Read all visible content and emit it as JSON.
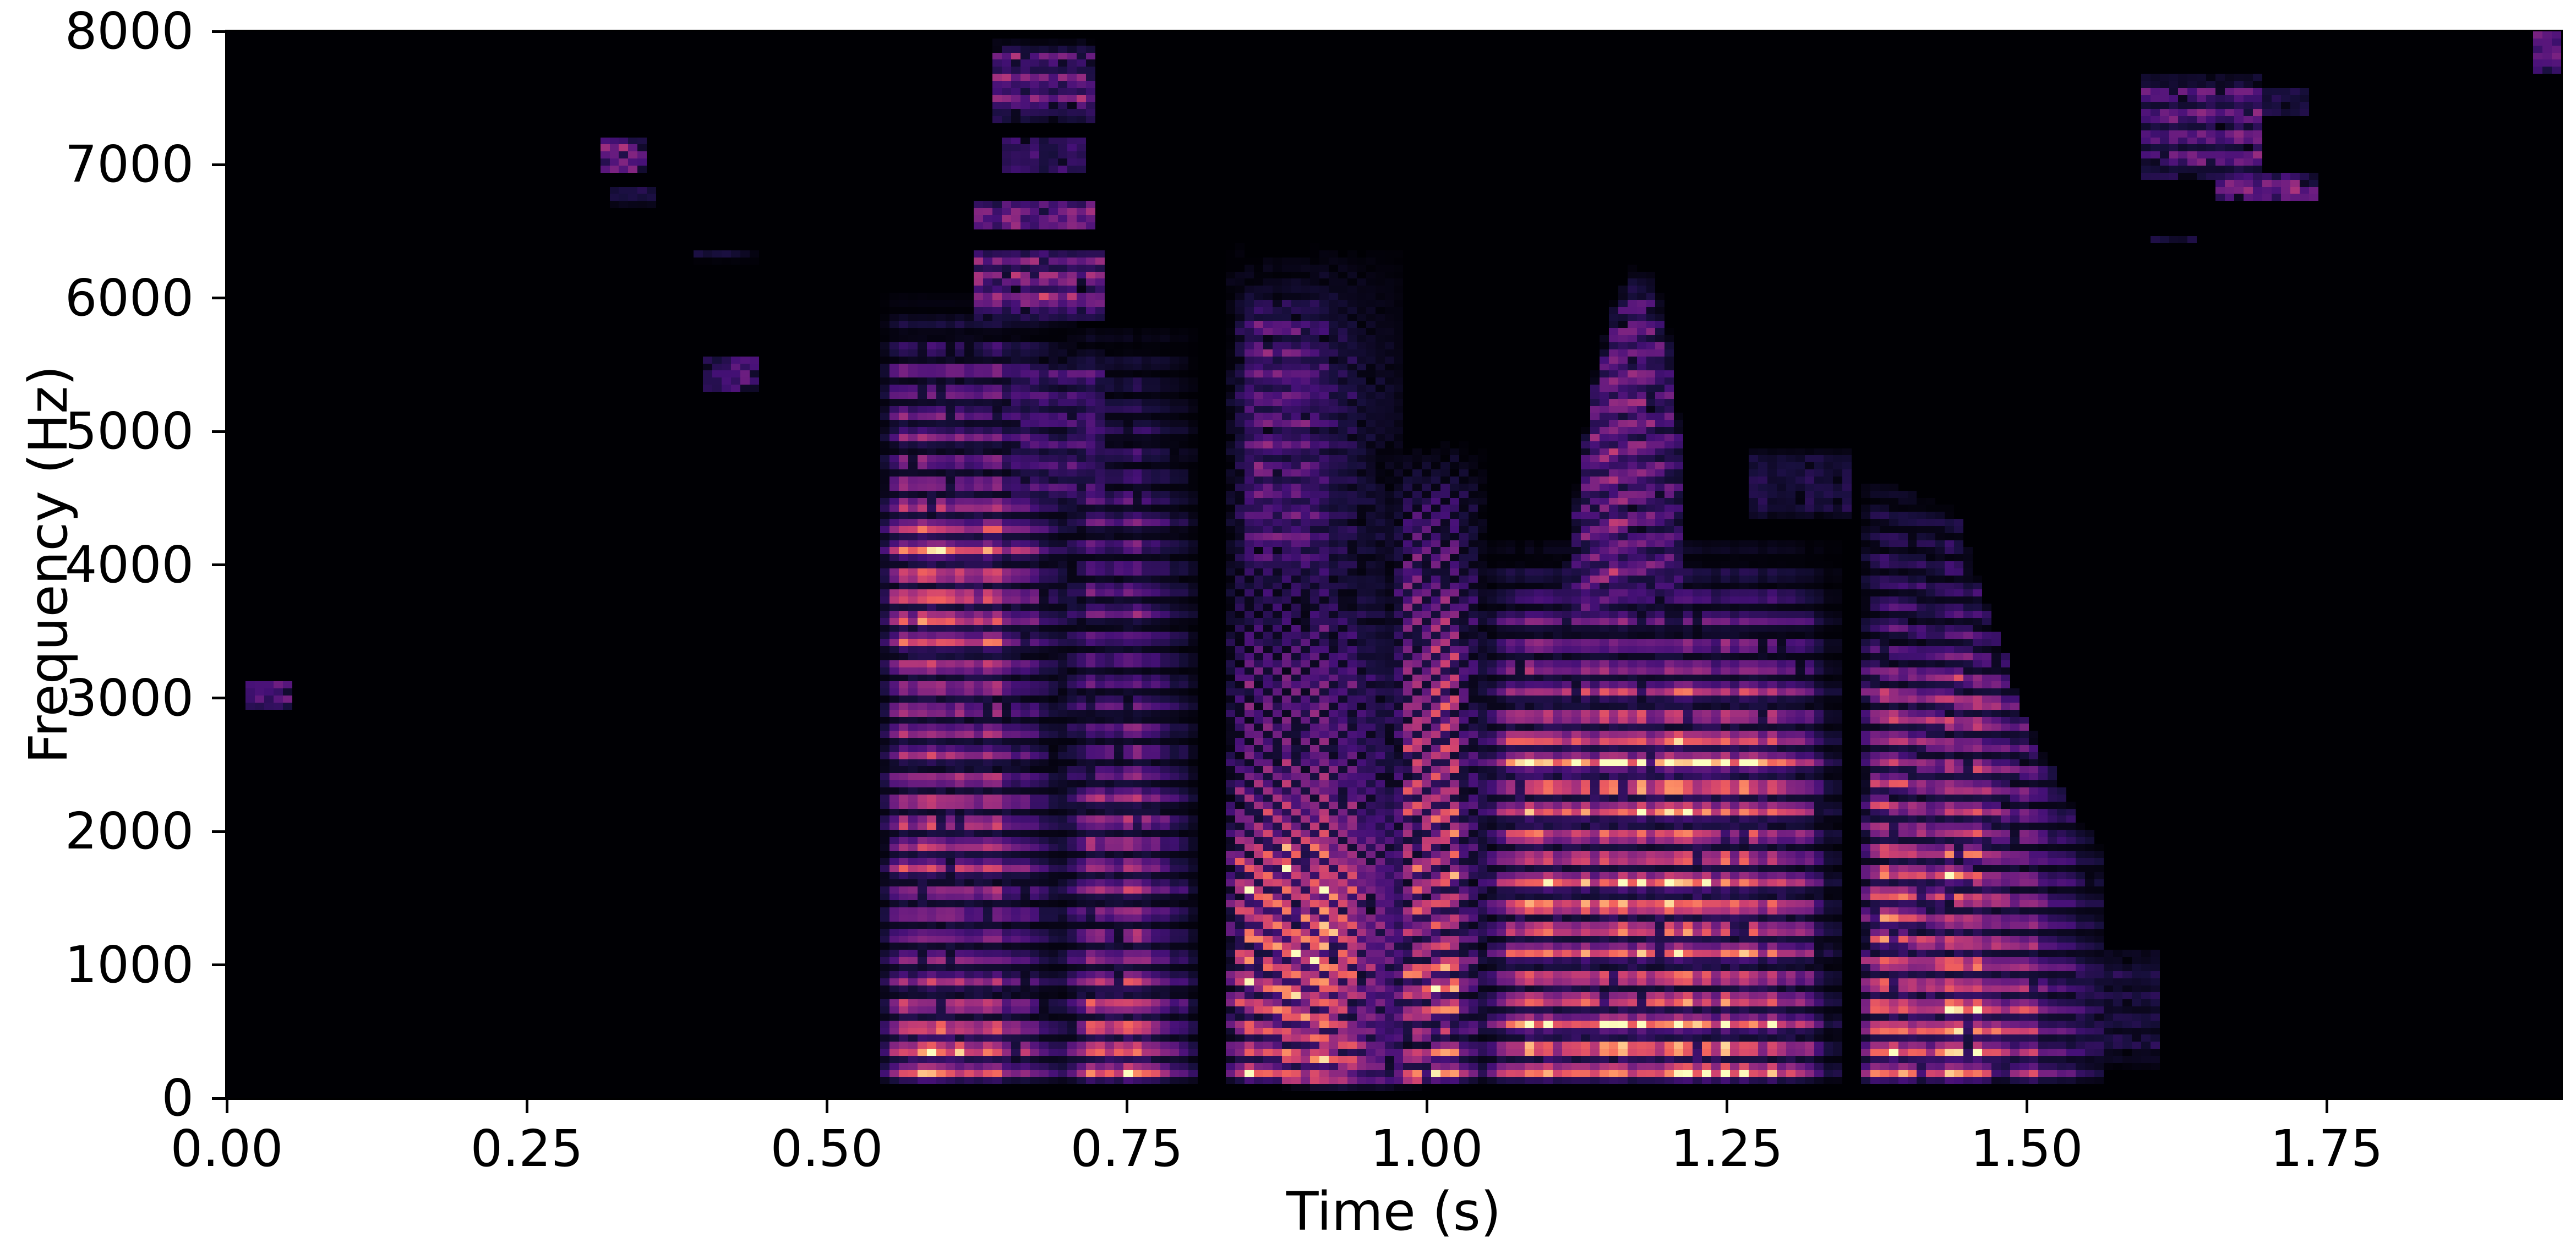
{
  "chart_data": {
    "type": "heatmap",
    "variant": "spectrogram",
    "title": "",
    "xlabel": "Time (s)",
    "ylabel": "Frequency (Hz)",
    "xlim": [
      0,
      1.9454
    ],
    "ylim": [
      0,
      8000
    ],
    "grid_on": false,
    "xticks": [
      {
        "value": 0.0,
        "label": "0.00"
      },
      {
        "value": 0.25,
        "label": "0.25"
      },
      {
        "value": 0.5,
        "label": "0.50"
      },
      {
        "value": 0.75,
        "label": "0.75"
      },
      {
        "value": 1.0,
        "label": "1.00"
      },
      {
        "value": 1.25,
        "label": "1.25"
      },
      {
        "value": 1.5,
        "label": "1.50"
      },
      {
        "value": 1.75,
        "label": "1.75"
      }
    ],
    "yticks": [
      {
        "value": 0,
        "label": "0"
      },
      {
        "value": 1000,
        "label": "1000"
      },
      {
        "value": 2000,
        "label": "2000"
      },
      {
        "value": 3000,
        "label": "3000"
      },
      {
        "value": 4000,
        "label": "4000"
      },
      {
        "value": 5000,
        "label": "5000"
      },
      {
        "value": 6000,
        "label": "6000"
      },
      {
        "value": 7000,
        "label": "7000"
      },
      {
        "value": 8000,
        "label": "8000"
      }
    ],
    "colormap": {
      "name": "magma",
      "background": "#000004",
      "stops": [
        [
          0.0,
          "#000004"
        ],
        [
          0.125,
          "#180f3e"
        ],
        [
          0.25,
          "#451077"
        ],
        [
          0.375,
          "#721f81"
        ],
        [
          0.5,
          "#9f2f7f"
        ],
        [
          0.625,
          "#cd4071"
        ],
        [
          0.75,
          "#f1605d"
        ],
        [
          0.875,
          "#fd9567"
        ],
        [
          0.955,
          "#fecf92"
        ],
        [
          1.0,
          "#fcfdbf"
        ]
      ]
    },
    "grid": {
      "cols": 250,
      "rows": 151
    },
    "events": [
      {
        "name": "blip-3000hz",
        "type": "patch",
        "t0": 0.018,
        "t1": 0.045,
        "flo": 2930,
        "fhi": 3130,
        "amp": 0.32
      },
      {
        "name": "blip-7000hz",
        "type": "patch",
        "t0": 0.319,
        "t1": 0.342,
        "flo": 6940,
        "fhi": 7190,
        "amp": 0.42
      },
      {
        "name": "blip-6750hz",
        "type": "patch",
        "t0": 0.322,
        "t1": 0.352,
        "flo": 6700,
        "fhi": 6830,
        "amp": 0.15
      },
      {
        "name": "blip-6300hz",
        "type": "patch",
        "t0": 0.396,
        "t1": 0.432,
        "flo": 6280,
        "fhi": 6360,
        "amp": 0.13
      },
      {
        "name": "blip-5400hz",
        "type": "patch",
        "t0": 0.402,
        "t1": 0.436,
        "flo": 5290,
        "fhi": 5560,
        "amp": 0.28
      },
      {
        "name": "syllable-1",
        "type": "harmonics",
        "t0": 0.545,
        "t1": 0.7,
        "f0": 170,
        "slope": 0,
        "envelope": [
          [
            0.545,
            0.25
          ],
          [
            0.56,
            0.8
          ],
          [
            0.575,
            1
          ],
          [
            0.63,
            1
          ],
          [
            0.655,
            0.7
          ],
          [
            0.675,
            0.45
          ],
          [
            0.7,
            0.2
          ]
        ],
        "profile": [
          [
            80,
            0.3
          ],
          [
            200,
            0.95
          ],
          [
            420,
            1.0
          ],
          [
            600,
            0.8
          ],
          [
            800,
            0.55
          ],
          [
            1100,
            0.5
          ],
          [
            1500,
            0.62
          ],
          [
            1900,
            0.68
          ],
          [
            2150,
            0.72
          ],
          [
            2500,
            0.55
          ],
          [
            2900,
            0.6
          ],
          [
            3300,
            0.72
          ],
          [
            3700,
            0.85
          ],
          [
            4100,
            0.8
          ],
          [
            4400,
            0.65
          ],
          [
            4700,
            0.5
          ],
          [
            5100,
            0.45
          ],
          [
            5450,
            0.5
          ],
          [
            5600,
            0.3
          ],
          [
            5800,
            0.12
          ],
          [
            6000,
            0
          ]
        ]
      },
      {
        "name": "syllable-1-breath-4500-5600",
        "type": "patch",
        "t0": 0.655,
        "t1": 0.725,
        "flo": 4400,
        "fhi": 5600,
        "amp": 0.3,
        "stripe": 170
      },
      {
        "name": "syllable-1-breath-6000",
        "type": "patch",
        "t0": 0.63,
        "t1": 0.72,
        "flo": 5850,
        "fhi": 6350,
        "amp": 0.55,
        "stripe": 150
      },
      {
        "name": "syllable-1-breath-6600",
        "type": "patch",
        "t0": 0.626,
        "t1": 0.716,
        "flo": 6500,
        "fhi": 6720,
        "amp": 0.38
      },
      {
        "name": "syllable-1-breath-7050",
        "type": "patch",
        "t0": 0.648,
        "t1": 0.712,
        "flo": 6930,
        "fhi": 7210,
        "amp": 0.22
      },
      {
        "name": "syllable-1-breath-7600",
        "type": "patch",
        "t0": 0.645,
        "t1": 0.715,
        "flo": 7330,
        "fhi": 7910,
        "amp": 0.5,
        "stripe": 160
      },
      {
        "name": "syllable-2",
        "type": "harmonics",
        "t0": 0.7,
        "t1": 0.805,
        "f0": 172,
        "slope": 0,
        "envelope": [
          [
            0.7,
            0.3
          ],
          [
            0.715,
            0.9
          ],
          [
            0.725,
            1
          ],
          [
            0.765,
            1
          ],
          [
            0.785,
            0.6
          ],
          [
            0.805,
            0.25
          ]
        ],
        "profile": [
          [
            80,
            0.4
          ],
          [
            200,
            1
          ],
          [
            450,
            0.95
          ],
          [
            700,
            0.8
          ],
          [
            950,
            0.6
          ],
          [
            1300,
            0.55
          ],
          [
            1700,
            0.6
          ],
          [
            2100,
            0.62
          ],
          [
            2400,
            0.5
          ],
          [
            2800,
            0.42
          ],
          [
            3300,
            0.4
          ],
          [
            3800,
            0.42
          ],
          [
            4300,
            0.38
          ],
          [
            4700,
            0.3
          ],
          [
            5100,
            0.22
          ],
          [
            5500,
            0.15
          ],
          [
            5800,
            0
          ]
        ]
      },
      {
        "name": "syllable-3-falling",
        "type": "harmonics",
        "t0": 0.835,
        "t1": 0.975,
        "f0": 180,
        "slope": -2.8,
        "envelope": [
          [
            0.835,
            0.35
          ],
          [
            0.85,
            0.9
          ],
          [
            0.86,
            1
          ],
          [
            0.925,
            1
          ],
          [
            0.945,
            0.6
          ],
          [
            0.975,
            0.3
          ]
        ],
        "profile": [
          [
            80,
            0.5
          ],
          [
            180,
            1
          ],
          [
            350,
            0.9
          ],
          [
            600,
            0.9
          ],
          [
            900,
            1
          ],
          [
            1300,
            1
          ],
          [
            1700,
            0.95
          ],
          [
            2000,
            0.7
          ],
          [
            2300,
            0.55
          ],
          [
            2700,
            0.5
          ],
          [
            3100,
            0.45
          ],
          [
            3500,
            0.3
          ],
          [
            3900,
            0.25
          ],
          [
            4300,
            0.28
          ],
          [
            4700,
            0.22
          ],
          [
            5300,
            0.28
          ],
          [
            5600,
            0.2
          ],
          [
            6100,
            0.1
          ],
          [
            6400,
            0
          ]
        ]
      },
      {
        "name": "syllable-3-high-stack",
        "type": "patch",
        "t0": 0.845,
        "t1": 0.925,
        "flo": 3850,
        "fhi": 6050,
        "amp": 0.42,
        "stripe": 175,
        "envelope": [
          [
            0.845,
            0.5
          ],
          [
            0.86,
            1
          ],
          [
            0.905,
            1
          ],
          [
            0.925,
            0.4
          ]
        ]
      },
      {
        "name": "syllable-4-rising",
        "type": "harmonics",
        "t0": 0.975,
        "t1": 1.045,
        "f0": 150,
        "slope": 2.0,
        "envelope": [
          [
            0.975,
            0.3
          ],
          [
            0.985,
            0.85
          ],
          [
            1.0,
            1
          ],
          [
            1.025,
            0.9
          ],
          [
            1.04,
            0.45
          ],
          [
            1.045,
            0.2
          ]
        ],
        "profile": [
          [
            80,
            0.5
          ],
          [
            180,
            1
          ],
          [
            400,
            0.7
          ],
          [
            650,
            0.8
          ],
          [
            850,
            1
          ],
          [
            1100,
            0.7
          ],
          [
            1500,
            0.75
          ],
          [
            1900,
            0.8
          ],
          [
            2300,
            0.75
          ],
          [
            2700,
            0.7
          ],
          [
            3100,
            0.65
          ],
          [
            3500,
            0.6
          ],
          [
            3900,
            0.45
          ],
          [
            4300,
            0.35
          ],
          [
            4600,
            0.2
          ],
          [
            4900,
            0
          ]
        ]
      },
      {
        "name": "syllable-5",
        "type": "harmonics",
        "t0": 1.048,
        "t1": 1.335,
        "f0": 178,
        "slope": 0,
        "envelope": [
          [
            1.048,
            0.25
          ],
          [
            1.07,
            0.85
          ],
          [
            1.08,
            1
          ],
          [
            1.27,
            1
          ],
          [
            1.3,
            0.75
          ],
          [
            1.325,
            0.5
          ],
          [
            1.335,
            0.2
          ]
        ],
        "profile": [
          [
            80,
            0.6
          ],
          [
            200,
            1
          ],
          [
            400,
            0.95
          ],
          [
            600,
            0.8
          ],
          [
            800,
            0.8
          ],
          [
            1000,
            0.75
          ],
          [
            1250,
            0.8
          ],
          [
            1450,
            0.95
          ],
          [
            1600,
            0.85
          ],
          [
            1800,
            0.75
          ],
          [
            2000,
            0.8
          ],
          [
            2400,
            1
          ],
          [
            2600,
            0.9
          ],
          [
            2800,
            0.75
          ],
          [
            3000,
            0.6
          ],
          [
            3300,
            0.5
          ],
          [
            3600,
            0.4
          ],
          [
            3900,
            0.2
          ],
          [
            4200,
            0
          ]
        ]
      },
      {
        "name": "syllable-5-arch",
        "type": "patch",
        "t0": 1.115,
        "t1": 1.215,
        "amp": 0.5,
        "stripe": 178,
        "flo_t": [
          [
            1.115,
            3450
          ],
          [
            1.13,
            3500
          ],
          [
            1.16,
            3600
          ],
          [
            1.19,
            3650
          ],
          [
            1.215,
            3700
          ]
        ],
        "fhi_t": [
          [
            1.115,
            3900
          ],
          [
            1.125,
            4600
          ],
          [
            1.14,
            5400
          ],
          [
            1.155,
            5900
          ],
          [
            1.17,
            6150
          ],
          [
            1.19,
            6100
          ],
          [
            1.205,
            5600
          ],
          [
            1.215,
            4600
          ]
        ],
        "envelope": [
          [
            1.115,
            0.4
          ],
          [
            1.13,
            0.8
          ],
          [
            1.15,
            1
          ],
          [
            1.19,
            1
          ],
          [
            1.205,
            0.7
          ],
          [
            1.215,
            0.3
          ]
        ]
      },
      {
        "name": "syllable-5-tail-patch",
        "type": "patch",
        "t0": 1.27,
        "t1": 1.345,
        "flo": 4350,
        "fhi": 4850,
        "amp": 0.14
      },
      {
        "name": "syllable-6",
        "type": "harmonics",
        "t0": 1.362,
        "t1": 1.555,
        "f0": 168,
        "slope": -0.25,
        "envelope": [
          [
            1.362,
            0.3
          ],
          [
            1.375,
            0.9
          ],
          [
            1.385,
            1
          ],
          [
            1.46,
            1
          ],
          [
            1.49,
            0.7
          ],
          [
            1.52,
            0.45
          ],
          [
            1.555,
            0.15
          ]
        ],
        "fcap": [
          [
            1.362,
            4600
          ],
          [
            1.44,
            4400
          ],
          [
            1.47,
            3600
          ],
          [
            1.5,
            2800
          ],
          [
            1.53,
            2300
          ],
          [
            1.555,
            1900
          ]
        ],
        "profile": [
          [
            80,
            0.55
          ],
          [
            200,
            1
          ],
          [
            380,
            0.85
          ],
          [
            550,
            1
          ],
          [
            720,
            0.95
          ],
          [
            900,
            0.85
          ],
          [
            1050,
            0.9
          ],
          [
            1250,
            0.8
          ],
          [
            1400,
            0.85
          ],
          [
            1550,
            0.9
          ],
          [
            1750,
            0.75
          ],
          [
            2000,
            0.7
          ],
          [
            2300,
            0.65
          ],
          [
            2600,
            0.6
          ],
          [
            2850,
            0.7
          ],
          [
            3050,
            0.65
          ],
          [
            3300,
            0.4
          ],
          [
            3600,
            0.3
          ],
          [
            4000,
            0.25
          ],
          [
            4400,
            0.15
          ],
          [
            4700,
            0
          ]
        ]
      },
      {
        "name": "syllable-6-low-tail",
        "type": "patch",
        "t0": 1.545,
        "t1": 1.6,
        "flo": 250,
        "fhi": 1100,
        "amp": 0.18,
        "stripe": 168
      },
      {
        "name": "post-cluster-7300",
        "type": "patch",
        "t0": 1.598,
        "t1": 1.69,
        "flo": 6890,
        "fhi": 7660,
        "amp": 0.42,
        "stripe": 160
      },
      {
        "name": "post-cluster-6430",
        "type": "patch",
        "t0": 1.605,
        "t1": 1.635,
        "flo": 6390,
        "fhi": 6460,
        "amp": 0.13
      },
      {
        "name": "post-cluster-6830",
        "type": "patch",
        "t0": 1.664,
        "t1": 1.733,
        "flo": 6740,
        "fhi": 6925,
        "amp": 0.4
      },
      {
        "name": "post-cluster-7470",
        "type": "patch",
        "t0": 1.678,
        "t1": 1.726,
        "flo": 7360,
        "fhi": 7580,
        "amp": 0.14
      },
      {
        "name": "right-edge-blob",
        "type": "patch",
        "t0": 1.925,
        "t1": 1.946,
        "flo": 7690,
        "fhi": 8010,
        "amp": 0.4
      }
    ]
  }
}
